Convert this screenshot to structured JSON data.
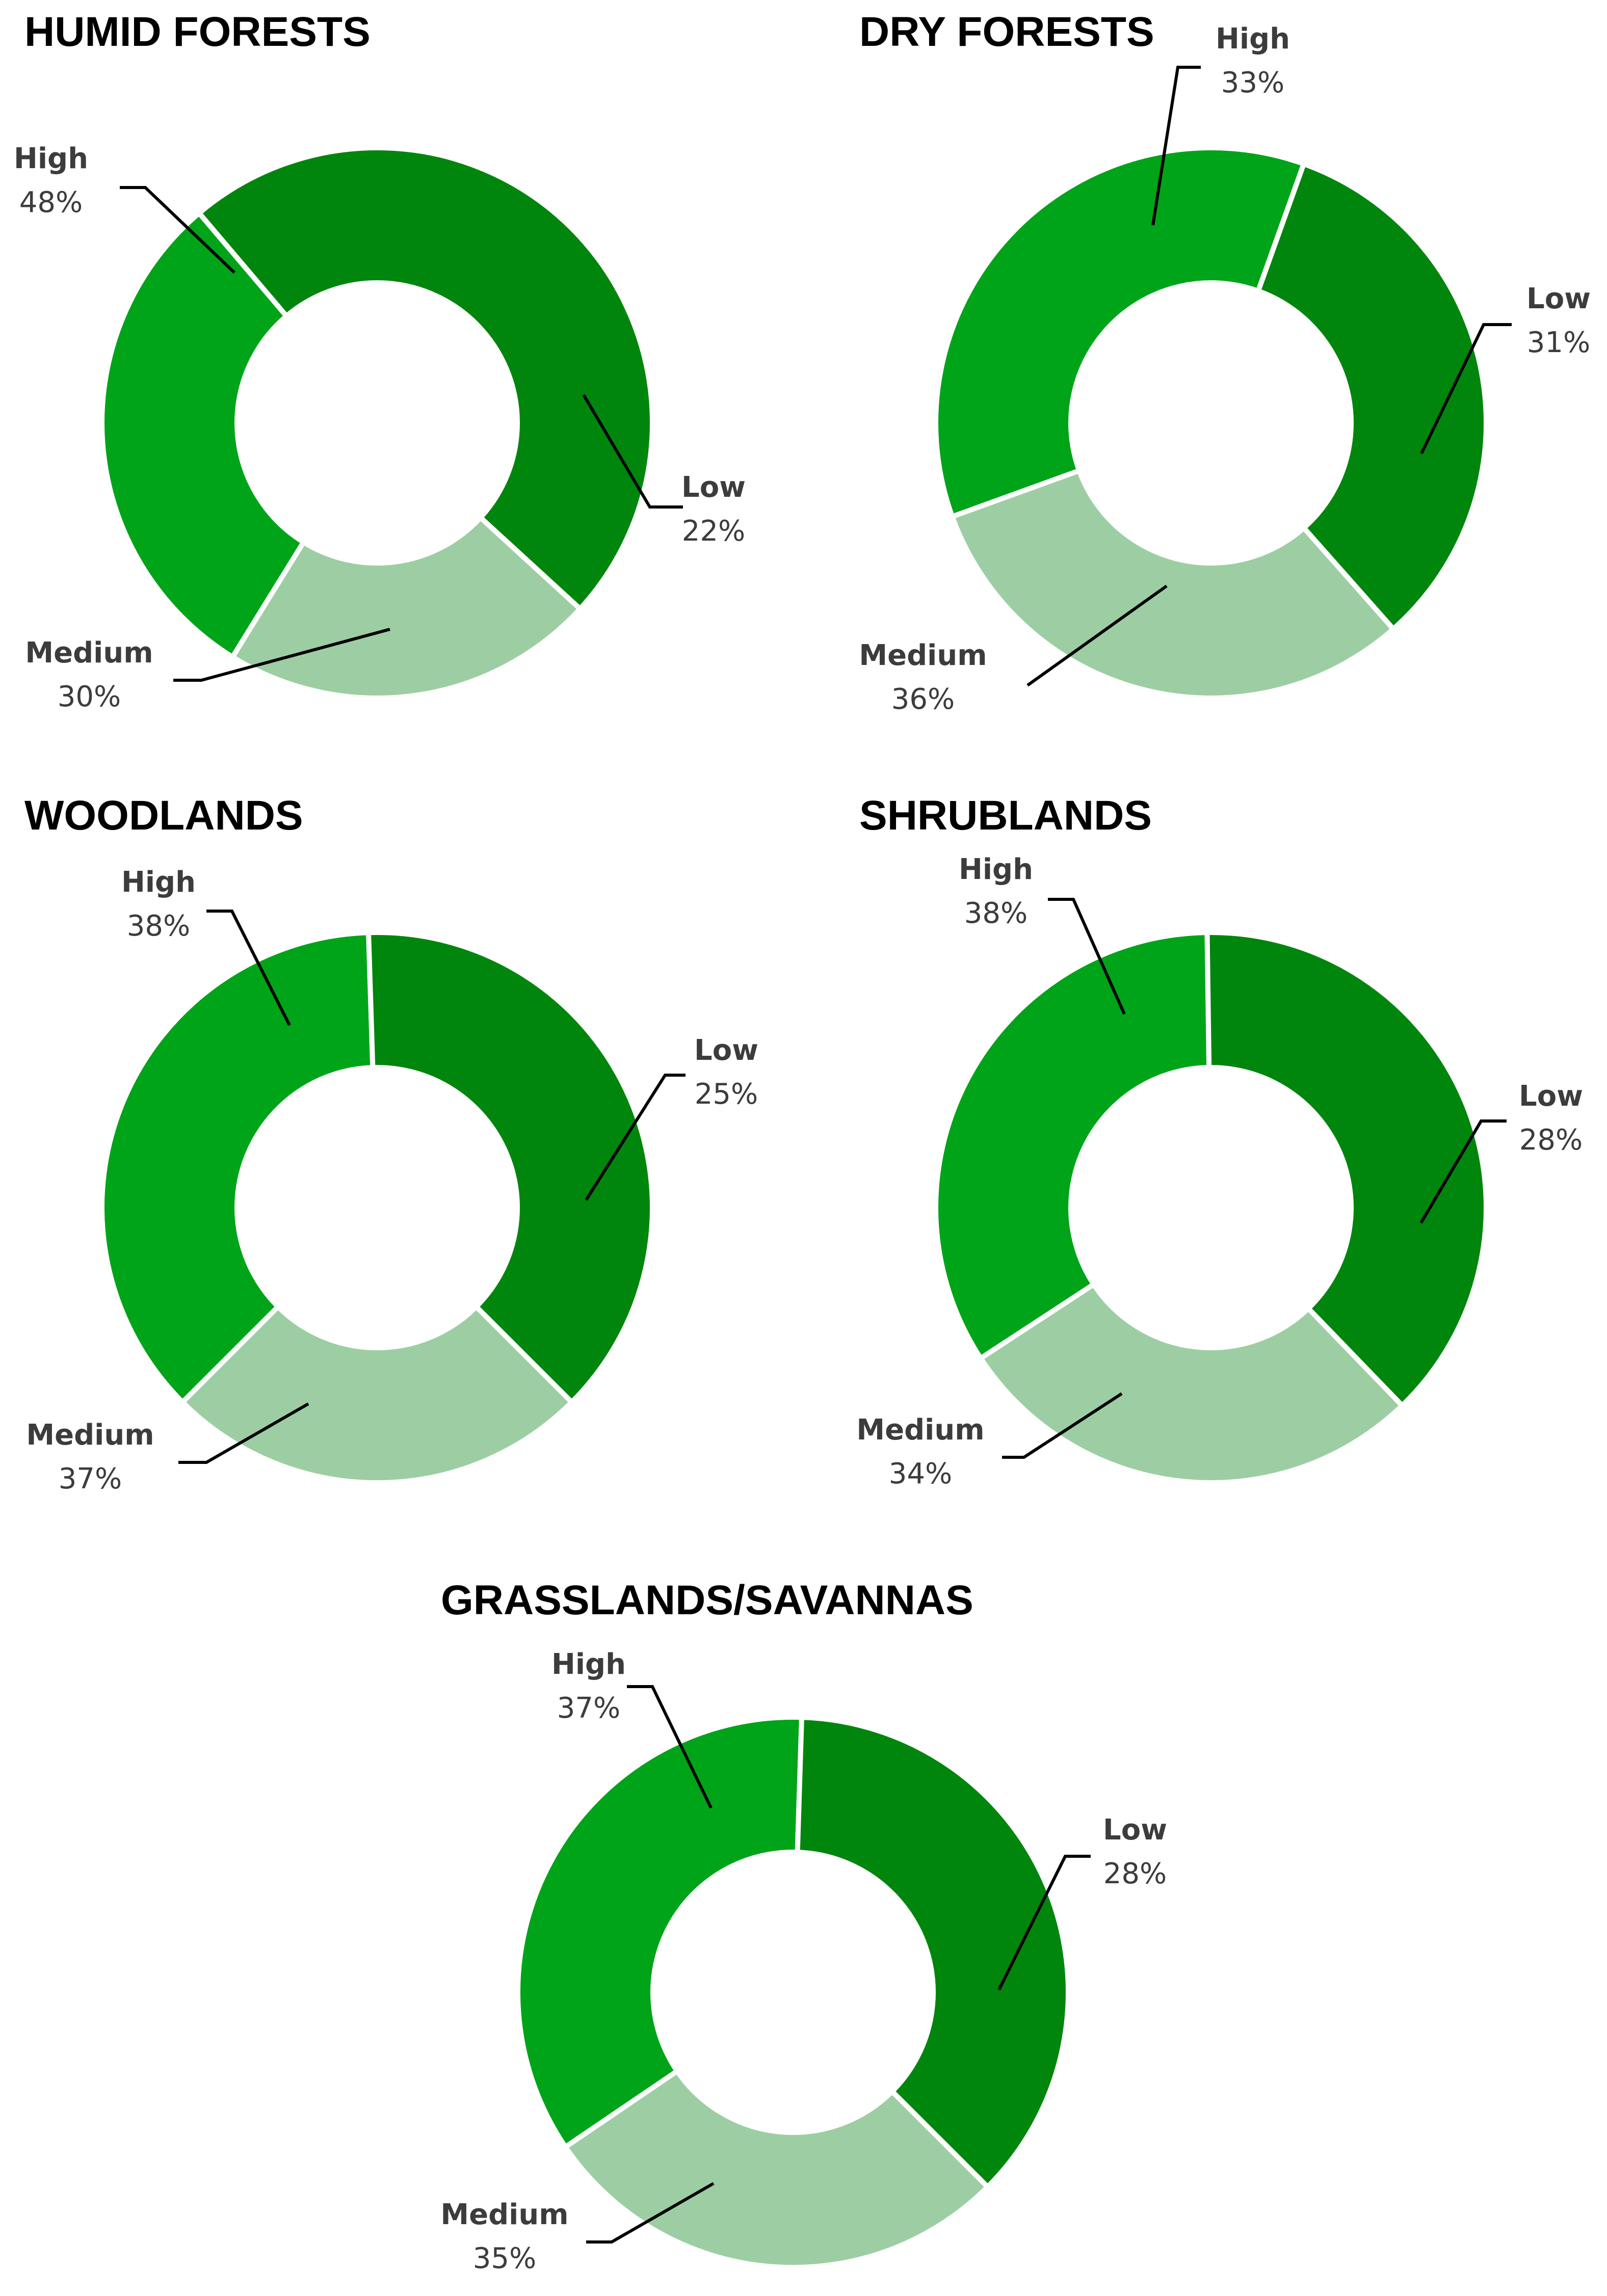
{
  "chart_data": [
    {
      "type": "pie",
      "title": "HUMID FORESTS",
      "categories": [
        "Low",
        "Medium",
        "High"
      ],
      "values": [
        22,
        30,
        48
      ],
      "value_labels": [
        "22%",
        "30%",
        "48%"
      ]
    },
    {
      "type": "pie",
      "title": "DRY FORESTS",
      "categories": [
        "Low",
        "Medium",
        "High"
      ],
      "values": [
        31,
        36,
        33
      ],
      "value_labels": [
        "31%",
        "36%",
        "33%"
      ]
    },
    {
      "type": "pie",
      "title": "WOODLANDS",
      "categories": [
        "Low",
        "Medium",
        "High"
      ],
      "values": [
        25,
        37,
        38
      ],
      "value_labels": [
        "25%",
        "37%",
        "38%"
      ]
    },
    {
      "type": "pie",
      "title": "SHRUBLANDS",
      "categories": [
        "Low",
        "Medium",
        "High"
      ],
      "values": [
        28,
        34,
        38
      ],
      "value_labels": [
        "28%",
        "34%",
        "38%"
      ]
    },
    {
      "type": "pie",
      "title": "GRASSLANDS/SAVANNAS",
      "categories": [
        "Low",
        "Medium",
        "High"
      ],
      "values": [
        28,
        35,
        37
      ],
      "value_labels": [
        "28%",
        "35%",
        "37%"
      ]
    }
  ],
  "colors": {
    "Low": "#9dcea3",
    "Medium": "#00a418",
    "High": "#00860c",
    "separator": "#ffffff",
    "leader": "#000000",
    "label_text": "#3c3c3c",
    "title_text": "#000000"
  }
}
